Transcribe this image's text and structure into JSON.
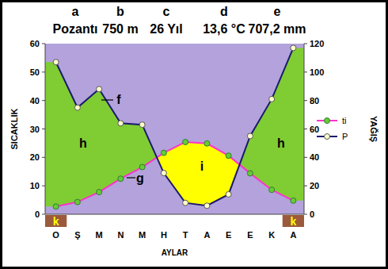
{
  "chart_data": {
    "type": "line",
    "header": [
      {
        "letter": "a",
        "text": "Pozantı"
      },
      {
        "letter": "b",
        "text": "750 m"
      },
      {
        "letter": "c",
        "text": "26 Yıl"
      },
      {
        "letter": "d",
        "text": "13,6 °C"
      },
      {
        "letter": "e",
        "text": "707,2 mm"
      }
    ],
    "x_label": "AYLAR",
    "y_label": "SICAKLIK",
    "y2_label": "YAĞIŞ",
    "categories": [
      "O",
      "Ş",
      "M",
      "N",
      "M",
      "H",
      "T",
      "A",
      "E",
      "E",
      "K",
      "A"
    ],
    "series": [
      {
        "name": "ti",
        "color": "#ff33cc",
        "marker": "circle",
        "values": [
          2.7,
          4.3,
          7.8,
          12.5,
          16.6,
          21.6,
          25.4,
          24.9,
          20.6,
          14.4,
          8.6,
          4.8
        ]
      },
      {
        "name": "P",
        "color": "#1a1a6e",
        "marker": "circle",
        "axis": "y2",
        "values": [
          107,
          75,
          88,
          64,
          63,
          29,
          8,
          6,
          14,
          55,
          81,
          117
        ]
      }
    ],
    "ylim": [
      0,
      60
    ],
    "yticks": [
      0,
      10,
      20,
      30,
      40,
      50,
      60
    ],
    "y2lim": [
      0,
      120
    ],
    "y2ticks": [
      0,
      20,
      40,
      60,
      80,
      100,
      120
    ],
    "frost": [
      true,
      false,
      false,
      false,
      false,
      false,
      false,
      false,
      false,
      false,
      false,
      true
    ],
    "frost_label": "k",
    "annotations": [
      "f",
      "g",
      "h",
      "h",
      "i"
    ],
    "legend": "right"
  }
}
